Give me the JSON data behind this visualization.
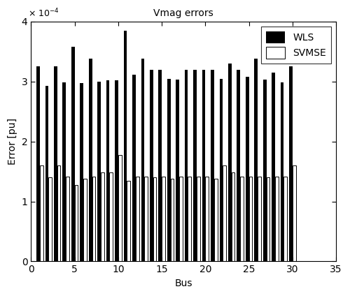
{
  "title": "Vmag errors",
  "xlabel": "Bus",
  "ylabel": "Error [pu]",
  "ylim": [
    0,
    0.0004
  ],
  "xlim": [
    0,
    35
  ],
  "ytick_values": [
    0,
    0.0001,
    0.0002,
    0.0003,
    0.0004
  ],
  "ytick_labels": [
    "0",
    "1",
    "2",
    "3",
    "4"
  ],
  "xtick_values": [
    0,
    5,
    10,
    15,
    20,
    25,
    30,
    35
  ],
  "xtick_labels": [
    "0",
    "5",
    "10",
    "15",
    "20",
    "25",
    "30",
    "35"
  ],
  "buses": [
    1,
    2,
    3,
    4,
    5,
    6,
    7,
    8,
    9,
    10,
    11,
    12,
    13,
    14,
    15,
    16,
    17,
    18,
    19,
    20,
    21,
    22,
    23,
    24,
    25,
    26,
    27,
    28,
    29,
    30
  ],
  "wls": [
    0.000325,
    0.000293,
    0.000325,
    0.000299,
    0.000358,
    0.000297,
    0.000338,
    0.0003,
    0.000302,
    0.000302,
    0.000385,
    0.000312,
    0.000338,
    0.00032,
    0.00032,
    0.000305,
    0.000303,
    0.00032,
    0.00032,
    0.00032,
    0.00032,
    0.000305,
    0.00033,
    0.00032,
    0.000308,
    0.000338,
    0.000303,
    0.000315,
    0.000299,
    0.000325
  ],
  "svmse": [
    0.00016,
    0.00014,
    0.00016,
    0.000142,
    0.000127,
    0.000138,
    0.000142,
    0.000148,
    0.000148,
    0.000178,
    0.000135,
    0.000142,
    0.000142,
    0.00014,
    0.000142,
    0.000138,
    0.000142,
    0.000142,
    0.000142,
    0.000142,
    0.000138,
    0.00016,
    0.000148,
    0.000142,
    0.000142,
    0.000142,
    0.00014,
    0.000142,
    0.000142,
    0.00016
  ],
  "wls_color": "#000000",
  "svmse_color": "#ffffff",
  "svmse_edgecolor": "#000000",
  "bar_width": 0.38,
  "legend_labels": [
    "WLS",
    "SVMSE"
  ],
  "figsize": [
    5.0,
    4.24
  ],
  "dpi": 100,
  "title_fontsize": 10,
  "label_fontsize": 10,
  "tick_fontsize": 10,
  "legend_fontsize": 10
}
